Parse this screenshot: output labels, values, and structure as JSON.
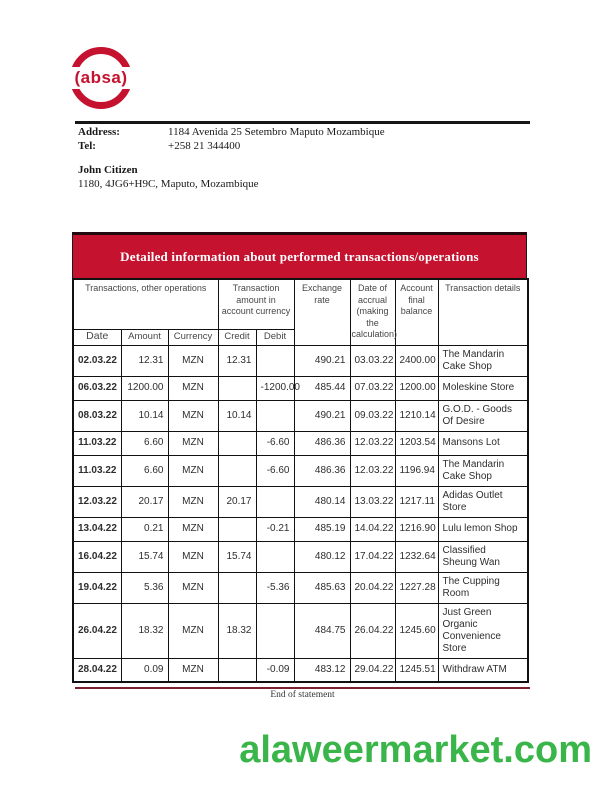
{
  "colors": {
    "brand_red": "#c4122f",
    "border_dark": "#111111",
    "footer_line": "#7a2130",
    "watermark_green": "#3ab54a"
  },
  "logo": {
    "brand": "absa",
    "display": "(absa)"
  },
  "contact": {
    "address_label": "Address:",
    "address_value": "1184 Avenida 25 Setembro Maputo Mozambique",
    "tel_label": "Tel:",
    "tel_value": "+258 21 344400"
  },
  "customer": {
    "name": "John Citizen",
    "address_line": "1180, 4JG6+H9C, Maputo, Mozambique"
  },
  "banner": {
    "title": "Detailed information about performed transactions/operations"
  },
  "table": {
    "group_headers": {
      "transactions": "Transactions, other operations",
      "amount_in_currency": "Transaction amount in account currency",
      "exchange_rate": "Exchange rate",
      "accrual": "Date of accrual (making the calculation)",
      "balance": "Account final balance",
      "details": "Transaction details"
    },
    "sub_headers": {
      "date": "Date",
      "amount": "Amount",
      "currency": "Currency",
      "credit": "Credit",
      "debit": "Debit"
    },
    "rows": [
      {
        "date": "02.03.22",
        "amount": "12.31",
        "currency": "MZN",
        "credit": "12.31",
        "debit": "",
        "exchange_rate": "490.21",
        "accrual_date": "03.03.22",
        "balance": "2400.00",
        "details": "The Mandarin Cake Shop"
      },
      {
        "date": "06.03.22",
        "amount": "1200.00",
        "currency": "MZN",
        "credit": "",
        "debit": "-1200.00",
        "exchange_rate": "485.44",
        "accrual_date": "07.03.22",
        "balance": "1200.00",
        "details": "Moleskine Store"
      },
      {
        "date": "08.03.22",
        "amount": "10.14",
        "currency": "MZN",
        "credit": "10.14",
        "debit": "",
        "exchange_rate": "490.21",
        "accrual_date": "09.03.22",
        "balance": "1210.14",
        "details": "G.O.D. - Goods Of Desire"
      },
      {
        "date": "11.03.22",
        "amount": "6.60",
        "currency": "MZN",
        "credit": "",
        "debit": "-6.60",
        "exchange_rate": "486.36",
        "accrual_date": "12.03.22",
        "balance": "1203.54",
        "details": "Mansons Lot"
      },
      {
        "date": "11.03.22",
        "amount": "6.60",
        "currency": "MZN",
        "credit": "",
        "debit": "-6.60",
        "exchange_rate": "486.36",
        "accrual_date": "12.03.22",
        "balance": "1196.94",
        "details": "The Mandarin Cake Shop"
      },
      {
        "date": "12.03.22",
        "amount": "20.17",
        "currency": "MZN",
        "credit": "20.17",
        "debit": "",
        "exchange_rate": "480.14",
        "accrual_date": "13.03.22",
        "balance": "1217.11",
        "details": "Adidas Outlet Store"
      },
      {
        "date": "13.04.22",
        "amount": "0.21",
        "currency": "MZN",
        "credit": "",
        "debit": "-0.21",
        "exchange_rate": "485.19",
        "accrual_date": "14.04.22",
        "balance": "1216.90",
        "details": "Lulu lemon Shop"
      },
      {
        "date": "16.04.22",
        "amount": "15.74",
        "currency": "MZN",
        "credit": "15.74",
        "debit": "",
        "exchange_rate": "480.12",
        "accrual_date": "17.04.22",
        "balance": "1232.64",
        "details": "Classified Sheung Wan"
      },
      {
        "date": "19.04.22",
        "amount": "5.36",
        "currency": "MZN",
        "credit": "",
        "debit": "-5.36",
        "exchange_rate": "485.63",
        "accrual_date": "20.04.22",
        "balance": "1227.28",
        "details": "The Cupping Room"
      },
      {
        "date": "26.04.22",
        "amount": "18.32",
        "currency": "MZN",
        "credit": "18.32",
        "debit": "",
        "exchange_rate": "484.75",
        "accrual_date": "26.04.22",
        "balance": "1245.60",
        "details": "Just Green Organic Convenience Store"
      },
      {
        "date": "28.04.22",
        "amount": "0.09",
        "currency": "MZN",
        "credit": "",
        "debit": "-0.09",
        "exchange_rate": "483.12",
        "accrual_date": "29.04.22",
        "balance": "1245.51",
        "details": "Withdraw ATM"
      }
    ]
  },
  "footer": {
    "end_text": "End of statement"
  },
  "watermark": {
    "text": "alaweermarket.com"
  }
}
